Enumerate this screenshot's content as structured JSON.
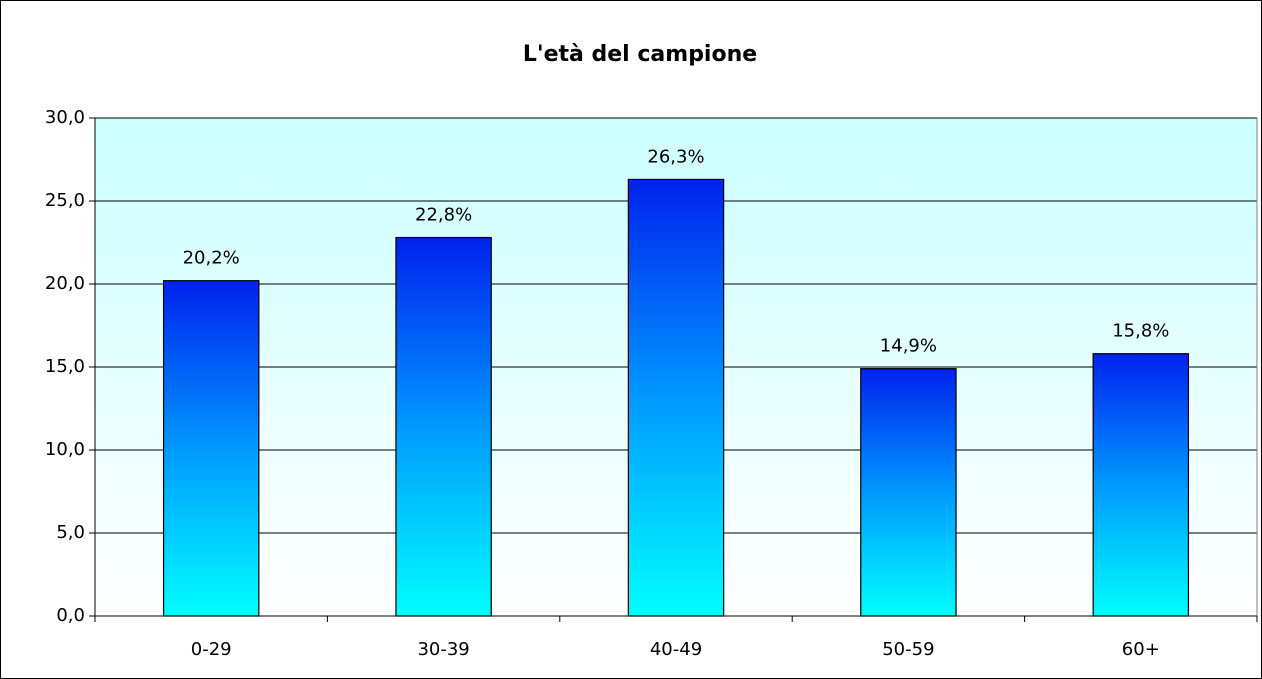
{
  "chart_data": {
    "type": "bar",
    "title": "L'età del campione",
    "categories": [
      "0-29",
      "30-39",
      "40-49",
      "50-59",
      "60+"
    ],
    "values": [
      20.2,
      22.8,
      26.3,
      14.9,
      15.8
    ],
    "value_labels": [
      "20,2%",
      "22,8%",
      "26,3%",
      "14,9%",
      "15,8%"
    ],
    "color": "#0022ee",
    "ylim": [
      0,
      30
    ],
    "yticks": [
      {
        "value": 0,
        "label": "0,0"
      },
      {
        "value": 5,
        "label": "5,0"
      },
      {
        "value": 10,
        "label": "10,0"
      },
      {
        "value": 15,
        "label": "15,0"
      },
      {
        "value": 20,
        "label": "20,0"
      },
      {
        "value": 25,
        "label": "25,0"
      },
      {
        "value": 30,
        "label": "30,0"
      }
    ],
    "grid": true
  }
}
